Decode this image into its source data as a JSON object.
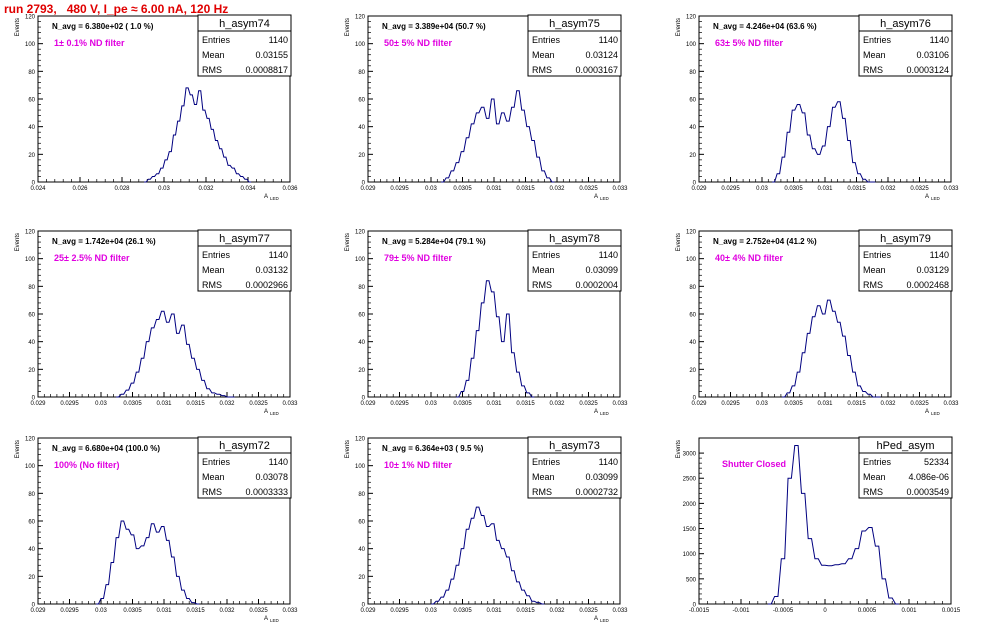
{
  "page": {
    "title": "run 2793,   480 V, I_pe ≈ 6.00 nA, 120 Hz"
  },
  "colors": {
    "histogram": "#000080",
    "annotation": "#e000e0",
    "title": "#e00000",
    "axis": "#000000"
  },
  "chart_data": [
    {
      "type": "histogram",
      "title": "h_asym74",
      "stats": {
        "entries": "1140",
        "mean": "0.03155",
        "rms": "0.0008817"
      },
      "stat_labels": {
        "entries": "Entries",
        "mean": "Mean",
        "rms": "RMS"
      },
      "navg_text": "N_avg = 6.380e+02 ( 1.0 %)",
      "filter_text": "1± 0.1% ND filter",
      "ylabel": "Events",
      "xlabel": "A_LED",
      "xlim": [
        0.024,
        0.036
      ],
      "ylim": [
        0,
        120
      ],
      "xticks": [
        "0.024",
        "0.026",
        "0.028",
        "0.03",
        "0.032",
        "0.034",
        "0.036"
      ],
      "yticks": [
        "0",
        "20",
        "40",
        "60",
        "80",
        "100",
        "120"
      ],
      "bin_width": 0.0001,
      "x": [
        0.0291,
        0.0293,
        0.0295,
        0.0297,
        0.0299,
        0.0301,
        0.0303,
        0.0305,
        0.0307,
        0.0309,
        0.0311,
        0.0313,
        0.0315,
        0.0317,
        0.0319,
        0.0321,
        0.0323,
        0.0325,
        0.0327,
        0.0329,
        0.0331,
        0.0333,
        0.0335,
        0.0337,
        0.0339,
        0.0341
      ],
      "values": [
        0,
        2,
        4,
        6,
        10,
        16,
        22,
        34,
        44,
        55,
        68,
        63,
        56,
        66,
        52,
        46,
        38,
        30,
        24,
        18,
        12,
        10,
        6,
        4,
        2,
        0
      ]
    },
    {
      "type": "histogram",
      "title": "h_asym75",
      "stats": {
        "entries": "1140",
        "mean": "0.03124",
        "rms": "0.0003167"
      },
      "stat_labels": {
        "entries": "Entries",
        "mean": "Mean",
        "rms": "RMS"
      },
      "navg_text": "N_avg = 3.389e+04 (50.7 %)",
      "filter_text": "50± 5% ND filter",
      "ylabel": "Events",
      "xlabel": "A_LED",
      "xlim": [
        0.029,
        0.033
      ],
      "ylim": [
        0,
        120
      ],
      "xticks": [
        "0.029",
        "0.0295",
        "0.03",
        "0.0305",
        "0.031",
        "0.0315",
        "0.032",
        "0.0325",
        "0.033"
      ],
      "yticks": [
        "0",
        "20",
        "40",
        "60",
        "80",
        "100",
        "120"
      ],
      "bin_width": 4e-05,
      "x": [
        0.03018,
        0.03026,
        0.03034,
        0.03042,
        0.0305,
        0.03058,
        0.03066,
        0.03074,
        0.03082,
        0.0309,
        0.03098,
        0.03106,
        0.03114,
        0.03122,
        0.0313,
        0.03138,
        0.03146,
        0.03154,
        0.03162,
        0.0317,
        0.03178,
        0.03186,
        0.03194
      ],
      "values": [
        0,
        3,
        8,
        14,
        22,
        32,
        42,
        50,
        54,
        46,
        60,
        42,
        50,
        44,
        54,
        66,
        52,
        40,
        30,
        18,
        8,
        3,
        0
      ]
    },
    {
      "type": "histogram",
      "title": "h_asym76",
      "stats": {
        "entries": "1140",
        "mean": "0.03106",
        "rms": "0.0003124"
      },
      "stat_labels": {
        "entries": "Entries",
        "mean": "Mean",
        "rms": "RMS"
      },
      "navg_text": "N_avg = 4.246e+04 (63.6 %)",
      "filter_text": "63± 5% ND filter",
      "ylabel": "Events",
      "xlabel": "A_LED",
      "xlim": [
        0.029,
        0.033
      ],
      "ylim": [
        0,
        120
      ],
      "xticks": [
        "0.029",
        "0.0295",
        "0.03",
        "0.0305",
        "0.031",
        "0.0315",
        "0.032",
        "0.0325",
        "0.033"
      ],
      "yticks": [
        "0",
        "20",
        "40",
        "60",
        "80",
        "100",
        "120"
      ],
      "bin_width": 4e-05,
      "x": [
        0.03018,
        0.03026,
        0.03034,
        0.03042,
        0.0305,
        0.03058,
        0.03066,
        0.03074,
        0.03082,
        0.0309,
        0.03098,
        0.03106,
        0.03114,
        0.03122,
        0.0313,
        0.03138,
        0.03146,
        0.03154,
        0.03162,
        0.0317,
        0.03178
      ],
      "values": [
        0,
        6,
        18,
        36,
        52,
        56,
        50,
        34,
        24,
        20,
        26,
        40,
        54,
        58,
        46,
        30,
        14,
        6,
        2,
        0,
        0
      ]
    },
    {
      "type": "histogram",
      "title": "h_asym77",
      "stats": {
        "entries": "1140",
        "mean": "0.03132",
        "rms": "0.0002966"
      },
      "stat_labels": {
        "entries": "Entries",
        "mean": "Mean",
        "rms": "RMS"
      },
      "navg_text": "N_avg = 1.742e+04 (26.1 %)",
      "filter_text": "25± 2.5% ND filter",
      "ylabel": "Events",
      "xlabel": "A_LED",
      "xlim": [
        0.029,
        0.033
      ],
      "ylim": [
        0,
        120
      ],
      "xticks": [
        "0.029",
        "0.0295",
        "0.03",
        "0.0305",
        "0.031",
        "0.0315",
        "0.032",
        "0.0325",
        "0.033"
      ],
      "yticks": [
        "0",
        "20",
        "40",
        "60",
        "80",
        "100",
        "120"
      ],
      "bin_width": 4e-05,
      "x": [
        0.03026,
        0.03034,
        0.03042,
        0.0305,
        0.03058,
        0.03066,
        0.03074,
        0.03082,
        0.0309,
        0.03098,
        0.03106,
        0.03114,
        0.03122,
        0.0313,
        0.03138,
        0.03146,
        0.03154,
        0.03162,
        0.0317,
        0.03178,
        0.03186,
        0.03194,
        0.03202,
        0.0321
      ],
      "values": [
        0,
        2,
        5,
        10,
        18,
        28,
        40,
        50,
        56,
        62,
        54,
        60,
        46,
        52,
        38,
        28,
        20,
        12,
        6,
        3,
        2,
        1,
        0,
        0
      ]
    },
    {
      "type": "histogram",
      "title": "h_asym78",
      "stats": {
        "entries": "1140",
        "mean": "0.03099",
        "rms": "0.0002004"
      },
      "stat_labels": {
        "entries": "Entries",
        "mean": "Mean",
        "rms": "RMS"
      },
      "navg_text": "N_avg = 5.284e+04 (79.1 %)",
      "filter_text": "79± 5% ND filter",
      "ylabel": "Events",
      "xlabel": "A_LED",
      "xlim": [
        0.029,
        0.033
      ],
      "ylim": [
        0,
        120
      ],
      "xticks": [
        "0.029",
        "0.0295",
        "0.03",
        "0.0305",
        "0.031",
        "0.0315",
        "0.032",
        "0.0325",
        "0.033"
      ],
      "yticks": [
        "0",
        "20",
        "40",
        "60",
        "80",
        "100",
        "120"
      ],
      "bin_width": 4e-05,
      "x": [
        0.03042,
        0.0305,
        0.03058,
        0.03066,
        0.03074,
        0.03082,
        0.0309,
        0.03098,
        0.03106,
        0.03114,
        0.03122,
        0.0313,
        0.03138,
        0.03146,
        0.03154,
        0.03162
      ],
      "values": [
        0,
        4,
        12,
        28,
        48,
        68,
        84,
        76,
        58,
        40,
        60,
        32,
        18,
        8,
        3,
        0
      ]
    },
    {
      "type": "histogram",
      "title": "h_asym79",
      "stats": {
        "entries": "1140",
        "mean": "0.03129",
        "rms": "0.0002468"
      },
      "stat_labels": {
        "entries": "Entries",
        "mean": "Mean",
        "rms": "RMS"
      },
      "navg_text": "N_avg = 2.752e+04 (41.2 %)",
      "filter_text": "40± 4% ND filter",
      "ylabel": "Events",
      "xlabel": "A_LED",
      "xlim": [
        0.029,
        0.033
      ],
      "ylim": [
        0,
        120
      ],
      "xticks": [
        "0.029",
        "0.0295",
        "0.03",
        "0.0305",
        "0.031",
        "0.0315",
        "0.032",
        "0.0325",
        "0.033"
      ],
      "yticks": [
        "0",
        "20",
        "40",
        "60",
        "80",
        "100",
        "120"
      ],
      "bin_width": 4e-05,
      "x": [
        0.03034,
        0.03042,
        0.0305,
        0.03058,
        0.03066,
        0.03074,
        0.03082,
        0.0309,
        0.03098,
        0.03106,
        0.03114,
        0.03122,
        0.0313,
        0.03138,
        0.03146,
        0.03154,
        0.03162,
        0.0317,
        0.03178,
        0.03186
      ],
      "values": [
        0,
        3,
        8,
        18,
        32,
        46,
        58,
        66,
        60,
        70,
        62,
        54,
        44,
        30,
        18,
        8,
        4,
        2,
        0,
        0
      ]
    },
    {
      "type": "histogram",
      "title": "h_asym72",
      "stats": {
        "entries": "1140",
        "mean": "0.03078",
        "rms": "0.0003333"
      },
      "stat_labels": {
        "entries": "Entries",
        "mean": "Mean",
        "rms": "RMS"
      },
      "navg_text": "N_avg = 6.680e+04 (100.0 %)",
      "filter_text": "100% (No filter)",
      "ylabel": "Events",
      "xlabel": "A_LED",
      "xlim": [
        0.029,
        0.033
      ],
      "ylim": [
        0,
        120
      ],
      "xticks": [
        "0.029",
        "0.0295",
        "0.03",
        "0.0305",
        "0.031",
        "0.0315",
        "0.032",
        "0.0325",
        "0.033"
      ],
      "yticks": [
        "0",
        "20",
        "40",
        "60",
        "80",
        "100",
        "120"
      ],
      "bin_width": 4e-05,
      "x": [
        0.02994,
        0.03002,
        0.0301,
        0.03018,
        0.03026,
        0.03034,
        0.03042,
        0.0305,
        0.03058,
        0.03066,
        0.03074,
        0.03082,
        0.0309,
        0.03098,
        0.03106,
        0.03114,
        0.03122,
        0.0313,
        0.03138,
        0.03146,
        0.03154
      ],
      "values": [
        0,
        4,
        14,
        30,
        48,
        60,
        54,
        50,
        40,
        42,
        48,
        58,
        52,
        56,
        46,
        34,
        20,
        10,
        4,
        1,
        0
      ]
    },
    {
      "type": "histogram",
      "title": "h_asym73",
      "stats": {
        "entries": "1140",
        "mean": "0.03099",
        "rms": "0.0002732"
      },
      "stat_labels": {
        "entries": "Entries",
        "mean": "Mean",
        "rms": "RMS"
      },
      "navg_text": "N_avg = 6.364e+03 ( 9.5 %)",
      "filter_text": "10± 1% ND filter",
      "ylabel": "Events",
      "xlabel": "A_LED",
      "xlim": [
        0.029,
        0.033
      ],
      "ylim": [
        0,
        120
      ],
      "xticks": [
        "0.029",
        "0.0295",
        "0.03",
        "0.0305",
        "0.031",
        "0.0315",
        "0.032",
        "0.0325",
        "0.033"
      ],
      "yticks": [
        "0",
        "20",
        "40",
        "60",
        "80",
        "100",
        "120"
      ],
      "bin_width": 4e-05,
      "x": [
        0.03002,
        0.0301,
        0.03018,
        0.03026,
        0.03034,
        0.03042,
        0.0305,
        0.03058,
        0.03066,
        0.03074,
        0.03082,
        0.0309,
        0.03098,
        0.03106,
        0.03114,
        0.03122,
        0.0313,
        0.03138,
        0.03146,
        0.03154,
        0.03162,
        0.0317,
        0.03178
      ],
      "values": [
        0,
        2,
        5,
        10,
        18,
        28,
        40,
        54,
        62,
        70,
        64,
        56,
        58,
        46,
        40,
        34,
        24,
        16,
        10,
        6,
        2,
        1,
        0
      ]
    },
    {
      "type": "histogram",
      "title": "hPed_asym",
      "stats": {
        "entries": "52334",
        "mean": "4.086e-06",
        "rms": "0.0003549"
      },
      "stat_labels": {
        "entries": "Entries",
        "mean": "Mean",
        "rms": "RMS"
      },
      "navg_text": "",
      "filter_text": "Shutter Closed",
      "ylabel": "Events",
      "xlabel": "",
      "xlim": [
        -0.0015,
        0.0015
      ],
      "ylim": [
        0,
        3300
      ],
      "xticks": [
        "-0.0015",
        "-0.001",
        "-0.0005",
        "0",
        "0.0005",
        "0.001",
        "0.0015"
      ],
      "yticks": [
        "0",
        "500",
        "1000",
        "1500",
        "2000",
        "2500",
        "3000"
      ],
      "bin_width": 4e-05,
      "x": [
        -0.00066,
        -0.00058,
        -0.0005,
        -0.00042,
        -0.00034,
        -0.00026,
        -0.00018,
        -0.0001,
        -2e-05,
        6e-05,
        0.00014,
        0.00022,
        0.0003,
        0.00038,
        0.00046,
        0.00054,
        0.00062,
        0.0007,
        0.00078,
        0.00086
      ],
      "values": [
        0,
        150,
        900,
        2500,
        3150,
        2200,
        1300,
        900,
        770,
        760,
        780,
        800,
        900,
        1100,
        1450,
        1520,
        1150,
        500,
        120,
        0
      ]
    }
  ]
}
